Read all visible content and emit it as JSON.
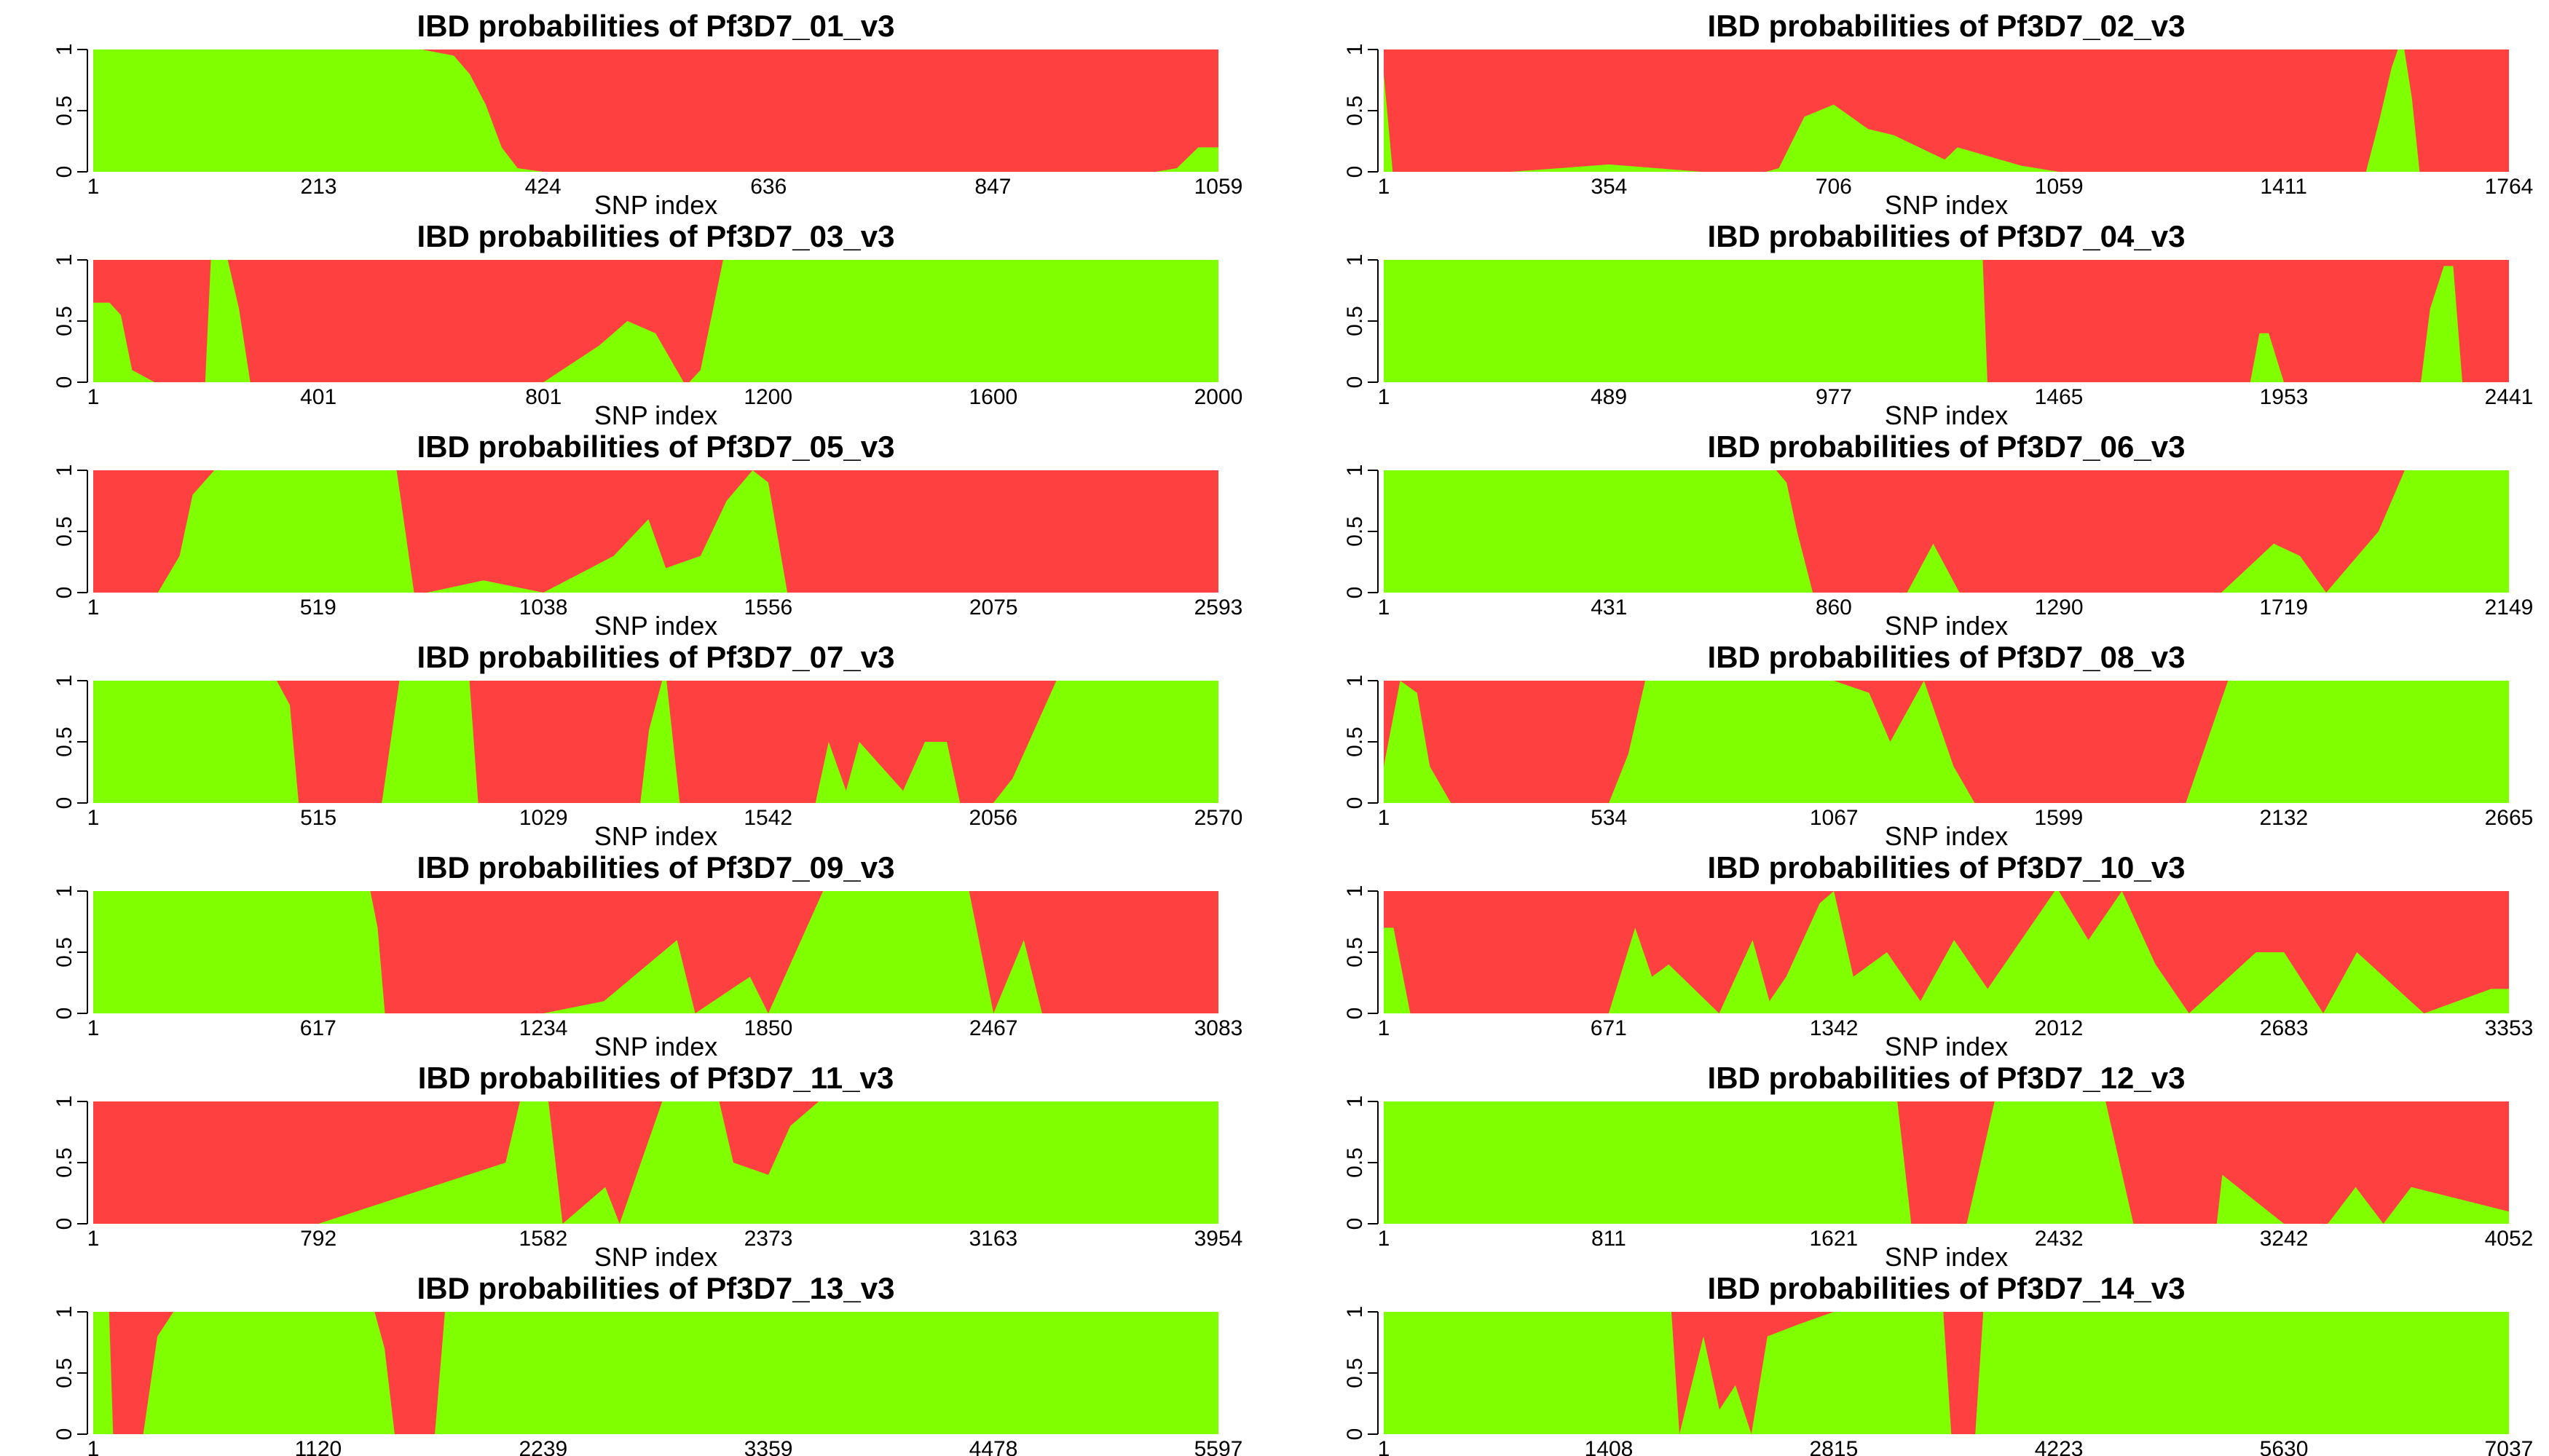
{
  "colors": {
    "ibd": "#7fff00",
    "non_ibd": "#ff4040"
  },
  "chart_data": [
    {
      "type": "area",
      "title": "IBD probabilities of Pf3D7_01_v3",
      "xlabel": "SNP index",
      "ylabel": "",
      "xticks": [
        1,
        213,
        424,
        636,
        847,
        1059
      ],
      "yticks": [
        "0",
        "0.5",
        "1"
      ],
      "xlim": [
        1,
        1059
      ],
      "ylim": [
        0,
        1
      ],
      "ibd_probability": {
        "x": [
          1,
          160,
          310,
          340,
          355,
          370,
          385,
          400,
          424,
          470,
          520,
          560,
          600,
          636,
          700,
          760,
          800,
          840,
          847,
          870,
          900,
          950,
          1000,
          1020,
          1040,
          1059
        ],
        "y": [
          1,
          1,
          1,
          0.95,
          0.8,
          0.55,
          0.2,
          0.03,
          0,
          0,
          0,
          0,
          0,
          0,
          0,
          0,
          0,
          0,
          0,
          0,
          0,
          0,
          0,
          0.03,
          0.2,
          0.2
        ]
      }
    },
    {
      "type": "area",
      "title": "IBD probabilities of Pf3D7_02_v3",
      "xlabel": "SNP index",
      "ylabel": "",
      "xticks": [
        1,
        354,
        706,
        1059,
        1411,
        1764
      ],
      "yticks": [
        "0",
        "0.5",
        "1"
      ],
      "xlim": [
        1,
        1764
      ],
      "ylim": [
        0,
        1
      ],
      "ibd_probability": {
        "x": [
          1,
          15,
          40,
          200,
          354,
          500,
          600,
          620,
          660,
          706,
          760,
          800,
          880,
          900,
          1000,
          1059,
          1200,
          1411,
          1540,
          1560,
          1580,
          1590,
          1600,
          1612,
          1624,
          1640,
          1764
        ],
        "y": [
          0.8,
          0,
          0,
          0,
          0.06,
          0,
          0,
          0.03,
          0.45,
          0.55,
          0.35,
          0.3,
          0.1,
          0.2,
          0.05,
          0,
          0,
          0,
          0,
          0.4,
          0.85,
          1,
          1,
          0.6,
          0,
          0,
          0
        ]
      }
    },
    {
      "type": "area",
      "title": "IBD probabilities of Pf3D7_03_v3",
      "xlabel": "SNP index",
      "ylabel": "",
      "xticks": [
        1,
        401,
        801,
        1200,
        1600,
        2000
      ],
      "yticks": [
        "0",
        "0.5",
        "1"
      ],
      "xlim": [
        1,
        2000
      ],
      "ylim": [
        0,
        1
      ],
      "ibd_probability": {
        "x": [
          1,
          30,
          50,
          70,
          110,
          200,
          210,
          240,
          260,
          280,
          300,
          401,
          500,
          700,
          801,
          900,
          950,
          1000,
          1050,
          1060,
          1080,
          1100,
          1120,
          1140,
          1200,
          1400,
          1600,
          2000
        ],
        "y": [
          0.65,
          0.65,
          0.55,
          0.1,
          0,
          0,
          1,
          1,
          0.6,
          0,
          0,
          0,
          0,
          0,
          0,
          0.3,
          0.5,
          0.4,
          0,
          0,
          0.1,
          0.55,
          1,
          1,
          1,
          1,
          1,
          1
        ]
      }
    },
    {
      "type": "area",
      "title": "IBD probabilities of Pf3D7_04_v3",
      "xlabel": "SNP index",
      "ylabel": "",
      "xticks": [
        1,
        489,
        977,
        1465,
        1953,
        2441
      ],
      "yticks": [
        "0",
        "0.5",
        "1"
      ],
      "xlim": [
        1,
        2441
      ],
      "ylim": [
        0,
        1
      ],
      "ibd_probability": {
        "x": [
          1,
          489,
          977,
          1300,
          1310,
          1400,
          1465,
          1600,
          1800,
          1880,
          1900,
          1920,
          1953,
          2050,
          2250,
          2270,
          2300,
          2320,
          2340,
          2441
        ],
        "y": [
          1,
          1,
          1,
          1,
          0,
          0,
          0,
          0,
          0,
          0,
          0.4,
          0.4,
          0,
          0,
          0,
          0.6,
          0.95,
          0.95,
          0,
          0
        ]
      }
    },
    {
      "type": "area",
      "title": "IBD probabilities of Pf3D7_05_v3",
      "xlabel": "SNP index",
      "ylabel": "",
      "xticks": [
        1,
        519,
        1038,
        1556,
        2075,
        2593
      ],
      "yticks": [
        "0",
        "0.5",
        "1"
      ],
      "xlim": [
        1,
        2593
      ],
      "ylim": [
        0,
        1
      ],
      "ibd_probability": {
        "x": [
          1,
          150,
          200,
          230,
          280,
          519,
          700,
          720,
          740,
          770,
          900,
          1038,
          1200,
          1280,
          1320,
          1400,
          1460,
          1520,
          1556,
          1600,
          2000,
          2075,
          2300,
          2593
        ],
        "y": [
          0,
          0,
          0.3,
          0.8,
          1,
          1,
          1,
          0.5,
          0,
          0,
          0.1,
          0,
          0.3,
          0.6,
          0.2,
          0.3,
          0.75,
          1,
          0.9,
          0,
          0,
          0,
          0,
          0
        ]
      }
    },
    {
      "type": "area",
      "title": "IBD probabilities of Pf3D7_06_v3",
      "xlabel": "SNP index",
      "ylabel": "",
      "xticks": [
        1,
        431,
        860,
        1290,
        1719,
        2149
      ],
      "yticks": [
        "0",
        "0.5",
        "1"
      ],
      "xlim": [
        1,
        2149
      ],
      "ylim": [
        0,
        1
      ],
      "ibd_probability": {
        "x": [
          1,
          431,
          750,
          770,
          790,
          820,
          860,
          1000,
          1050,
          1100,
          1290,
          1600,
          1700,
          1750,
          1800,
          1900,
          1950,
          2149
        ],
        "y": [
          1,
          1,
          1,
          0.9,
          0.5,
          0,
          0,
          0,
          0.4,
          0,
          0,
          0,
          0.4,
          0.3,
          0,
          0.5,
          1,
          1
        ]
      }
    },
    {
      "type": "area",
      "title": "IBD probabilities of Pf3D7_07_v3",
      "xlabel": "SNP index",
      "ylabel": "",
      "xticks": [
        1,
        515,
        1029,
        1542,
        2056,
        2570
      ],
      "yticks": [
        "0",
        "0.5",
        "1"
      ],
      "xlim": [
        1,
        2570
      ],
      "ylim": [
        0,
        1
      ],
      "ibd_probability": {
        "x": [
          1,
          420,
          450,
          470,
          660,
          700,
          860,
          880,
          1020,
          1029,
          1250,
          1270,
          1300,
          1310,
          1340,
          1542,
          1650,
          1680,
          1720,
          1750,
          1800,
          1850,
          1900,
          1950,
          1980,
          2000,
          2056,
          2100,
          2200,
          2300,
          2570
        ],
        "y": [
          1,
          1,
          0.8,
          0,
          0,
          1,
          1,
          0,
          0,
          0,
          0,
          0.6,
          1,
          1,
          0,
          0,
          0,
          0.5,
          0.1,
          0.5,
          0.3,
          0.1,
          0.5,
          0.5,
          0,
          0,
          0,
          0.2,
          1,
          1,
          1
        ]
      }
    },
    {
      "type": "area",
      "title": "IBD probabilities of Pf3D7_08_v3",
      "xlabel": "SNP index",
      "ylabel": "",
      "xticks": [
        1,
        534,
        1067,
        1599,
        2132,
        2665
      ],
      "yticks": [
        "0",
        "0.5",
        "1"
      ],
      "xlim": [
        1,
        2665
      ],
      "ylim": [
        0,
        1
      ],
      "ibd_probability": {
        "x": [
          1,
          40,
          80,
          110,
          160,
          534,
          580,
          620,
          1067,
          1150,
          1200,
          1280,
          1350,
          1400,
          1599,
          1900,
          1950,
          2000,
          2132,
          2665
        ],
        "y": [
          0.3,
          1,
          0.9,
          0.3,
          0,
          0,
          0.4,
          1,
          1,
          0.9,
          0.5,
          1,
          0.3,
          0,
          0,
          0,
          0.5,
          1,
          1,
          1
        ]
      }
    },
    {
      "type": "area",
      "title": "IBD probabilities of Pf3D7_09_v3",
      "xlabel": "SNP index",
      "ylabel": "",
      "xticks": [
        1,
        617,
        1234,
        1850,
        2467,
        3083
      ],
      "yticks": [
        "0",
        "0.5",
        "1"
      ],
      "xlim": [
        1,
        3083
      ],
      "ylim": [
        0,
        1
      ],
      "ibd_probability": {
        "x": [
          1,
          617,
          760,
          780,
          800,
          820,
          1234,
          1400,
          1600,
          1650,
          1800,
          1850,
          2000,
          2200,
          2400,
          2467,
          2550,
          2600,
          2650,
          3083
        ],
        "y": [
          1,
          1,
          1,
          0.7,
          0,
          0,
          0,
          0.1,
          0.6,
          0,
          0.3,
          0,
          1,
          1,
          1,
          0,
          0.6,
          0,
          0,
          0
        ]
      }
    },
    {
      "type": "area",
      "title": "IBD probabilities of Pf3D7_10_v3",
      "xlabel": "SNP index",
      "ylabel": "",
      "xticks": [
        1,
        671,
        1342,
        2012,
        2683,
        3353
      ],
      "yticks": [
        "0",
        "0.5",
        "1"
      ],
      "xlim": [
        1,
        3353
      ],
      "ylim": [
        0,
        1
      ],
      "ibd_probability": {
        "x": [
          1,
          30,
          80,
          671,
          750,
          800,
          850,
          1000,
          1100,
          1150,
          1200,
          1300,
          1342,
          1400,
          1500,
          1600,
          1700,
          1800,
          2000,
          2012,
          2100,
          2200,
          2300,
          2400,
          2600,
          2683,
          2800,
          2900,
          3100,
          3300,
          3353
        ],
        "y": [
          0.7,
          0.7,
          0,
          0,
          0.7,
          0.3,
          0.4,
          0,
          0.6,
          0.1,
          0.3,
          0.9,
          1,
          0.3,
          0.5,
          0.1,
          0.6,
          0.2,
          1,
          1,
          0.6,
          1,
          0.4,
          0,
          0.5,
          0.5,
          0,
          0.5,
          0,
          0.2,
          0.2
        ]
      }
    },
    {
      "type": "area",
      "title": "IBD probabilities of Pf3D7_11_v3",
      "xlabel": "SNP index",
      "ylabel": "",
      "xticks": [
        1,
        792,
        1582,
        2373,
        3163,
        3954
      ],
      "yticks": [
        "0",
        "0.5",
        "1"
      ],
      "xlim": [
        1,
        3954
      ],
      "ylim": [
        0,
        1
      ],
      "ibd_probability": {
        "x": [
          1,
          792,
          1450,
          1500,
          1600,
          1650,
          1800,
          1850,
          2000,
          2200,
          2250,
          2373,
          2450,
          2550,
          2600,
          3163,
          3954
        ],
        "y": [
          0,
          0,
          0.5,
          1,
          1,
          0,
          0.3,
          0,
          1,
          1,
          0.5,
          0.4,
          0.8,
          1,
          1,
          1,
          1
        ]
      }
    },
    {
      "type": "area",
      "title": "IBD probabilities of Pf3D7_12_v3",
      "xlabel": "SNP index",
      "ylabel": "",
      "xticks": [
        1,
        811,
        1621,
        2432,
        3242,
        4052
      ],
      "yticks": [
        "0",
        "0.5",
        "1"
      ],
      "xlim": [
        1,
        4052
      ],
      "ylim": [
        0,
        1
      ],
      "ibd_probability": {
        "x": [
          1,
          811,
          1621,
          1850,
          1900,
          2100,
          2200,
          2432,
          2600,
          2700,
          3000,
          3020,
          3242,
          3400,
          3500,
          3600,
          3700,
          4052
        ],
        "y": [
          1,
          1,
          1,
          1,
          0,
          0,
          1,
          1,
          1,
          0,
          0,
          0.4,
          0,
          0,
          0.3,
          0,
          0.3,
          0.1
        ]
      }
    },
    {
      "type": "area",
      "title": "IBD probabilities of Pf3D7_13_v3",
      "xlabel": "SNP index",
      "ylabel": "",
      "xticks": [
        1,
        1120,
        2239,
        3359,
        4478,
        5597
      ],
      "yticks": [
        "0",
        "0.5",
        "1"
      ],
      "xlim": [
        1,
        5597
      ],
      "ylim": [
        0,
        1
      ],
      "ibd_probability": {
        "x": [
          1,
          80,
          100,
          250,
          320,
          400,
          1120,
          1400,
          1450,
          1500,
          1700,
          1750,
          2239,
          3359,
          4478,
          5597
        ],
        "y": [
          1,
          1,
          0,
          0,
          0.8,
          1,
          1,
          1,
          0.7,
          0,
          0,
          1,
          1,
          1,
          1,
          1
        ]
      }
    },
    {
      "type": "area",
      "title": "IBD probabilities of Pf3D7_14_v3",
      "xlabel": "SNP index",
      "ylabel": "",
      "xticks": [
        1,
        1408,
        2815,
        4223,
        5630,
        7037
      ],
      "yticks": [
        "0",
        "0.5",
        "1"
      ],
      "xlim": [
        1,
        7037
      ],
      "ylim": [
        0,
        1
      ],
      "ibd_probability": {
        "x": [
          1,
          1408,
          1800,
          1850,
          2000,
          2100,
          2200,
          2300,
          2400,
          2600,
          2815,
          3500,
          3550,
          3700,
          3750,
          4223,
          5630,
          7037
        ],
        "y": [
          1,
          1,
          1,
          0,
          0.8,
          0.2,
          0.4,
          0,
          0.8,
          0.9,
          1,
          1,
          0,
          0,
          1,
          1,
          1,
          1
        ]
      }
    }
  ]
}
